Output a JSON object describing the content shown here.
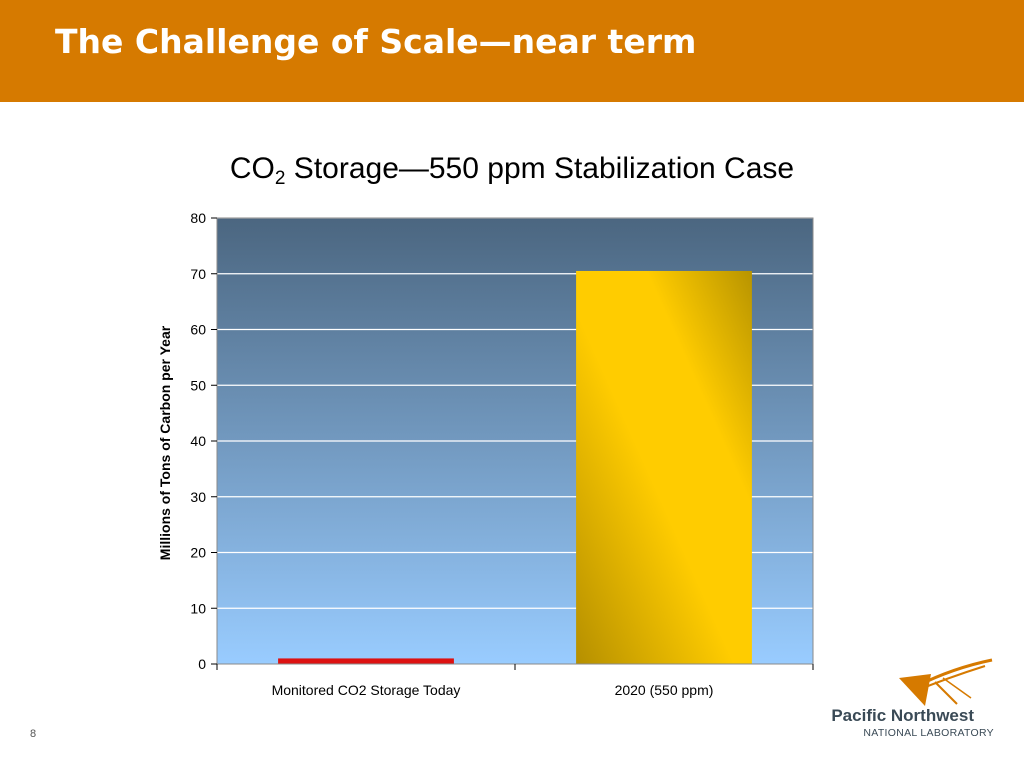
{
  "header": {
    "title": "The Challenge of Scale—near term"
  },
  "slide_number": "8",
  "logo": {
    "line1": "Pacific Northwest",
    "line2": "NATIONAL LABORATORY",
    "mark_icon": "pnnl-logo-icon"
  },
  "chart_data": {
    "type": "bar",
    "title_main": "CO",
    "title_sub": "2",
    "title_rest": " Storage—550 ppm Stabilization Case",
    "ylabel": "Millions of Tons of Carbon per Year",
    "xlabel": "",
    "categories": [
      "Monitored CO2 Storage Today",
      "2020 (550 ppm)"
    ],
    "values": [
      1,
      70.5
    ],
    "bar_colors": [
      "#dd1111",
      "#ffcc00"
    ],
    "ylim": [
      0,
      80
    ],
    "yticks": [
      0,
      10,
      20,
      30,
      40,
      50,
      60,
      70,
      80
    ],
    "grid": true,
    "legend": "none",
    "plot_background": {
      "top": "#4b6680",
      "bottom": "#99ccff"
    }
  }
}
